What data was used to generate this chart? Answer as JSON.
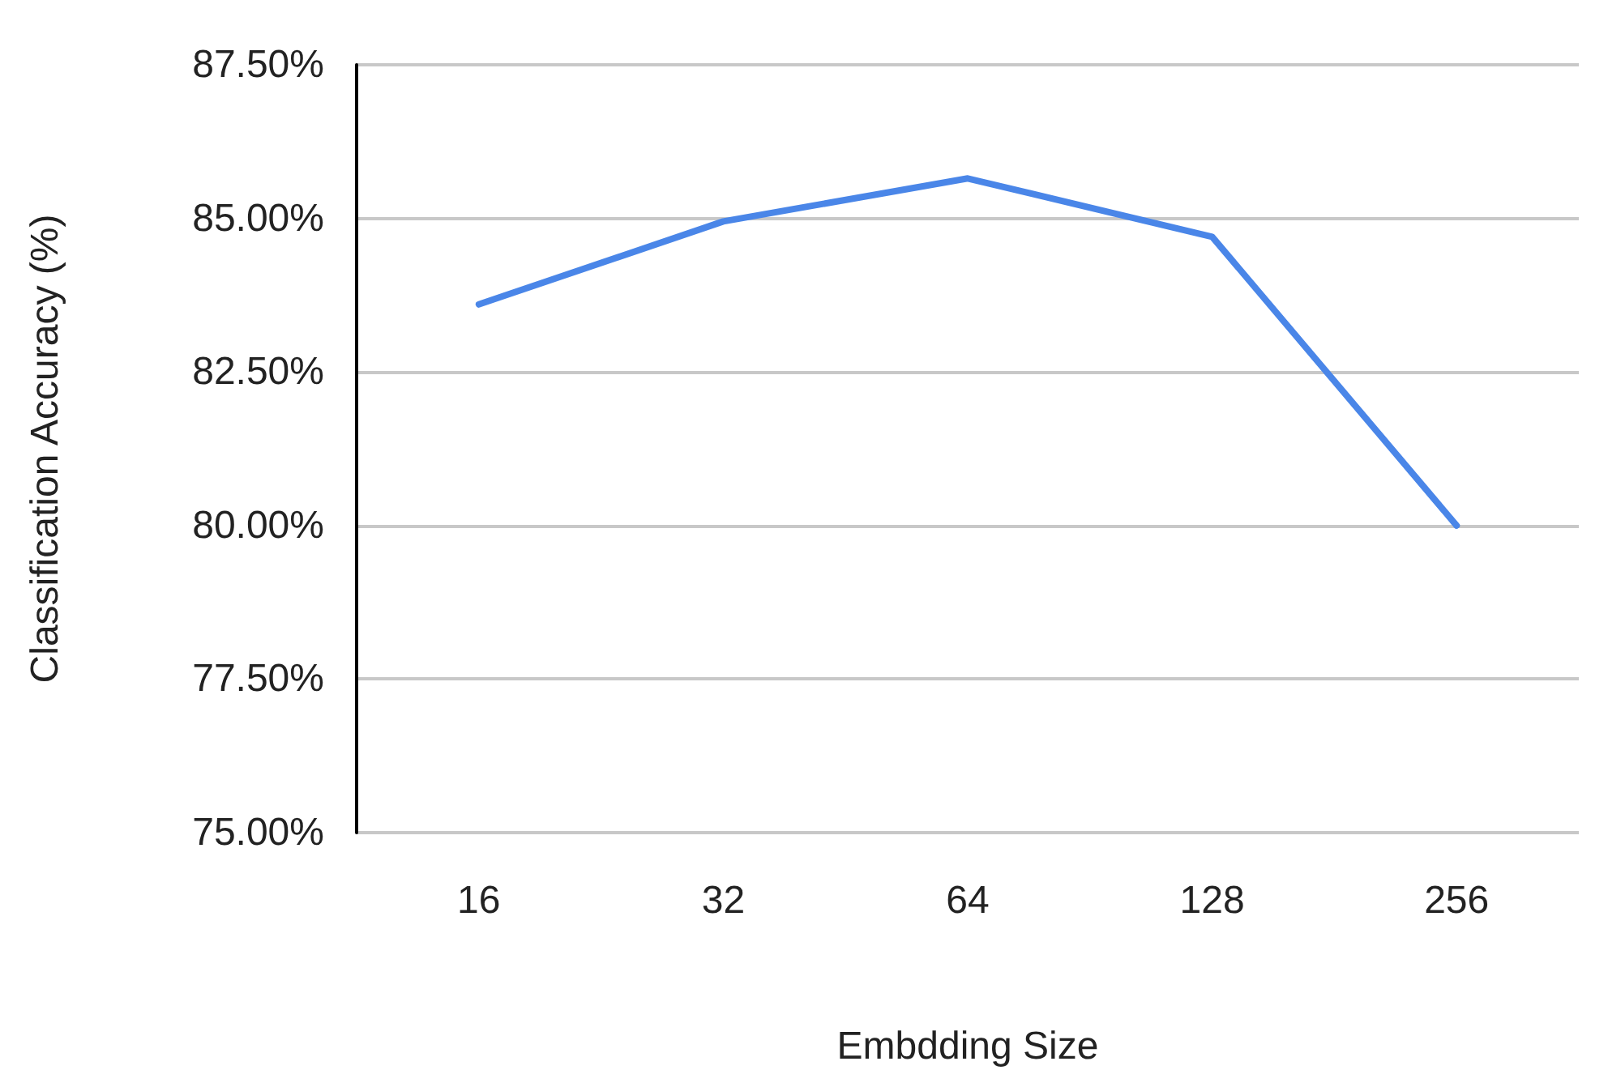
{
  "chart_data": {
    "type": "line",
    "xlabel": "Embdding Size",
    "ylabel": "Classification Accuracy (%)",
    "categories": [
      "16",
      "32",
      "64",
      "128",
      "256"
    ],
    "series": [
      {
        "color": "#4a86e8",
        "values": [
          83.6,
          84.95,
          85.65,
          84.7,
          80.0
        ]
      }
    ],
    "ylim": [
      75,
      87.5
    ],
    "yticks": [
      {
        "value": 75,
        "label": "75.00%"
      },
      {
        "value": 77.5,
        "label": "77.50%"
      },
      {
        "value": 80,
        "label": "80.00%"
      },
      {
        "value": 82.5,
        "label": "82.50%"
      },
      {
        "value": 85,
        "label": "85.00%"
      },
      {
        "value": 87.5,
        "label": "87.50%"
      }
    ],
    "grid": "y",
    "marker": "none",
    "line_style": "solid"
  }
}
